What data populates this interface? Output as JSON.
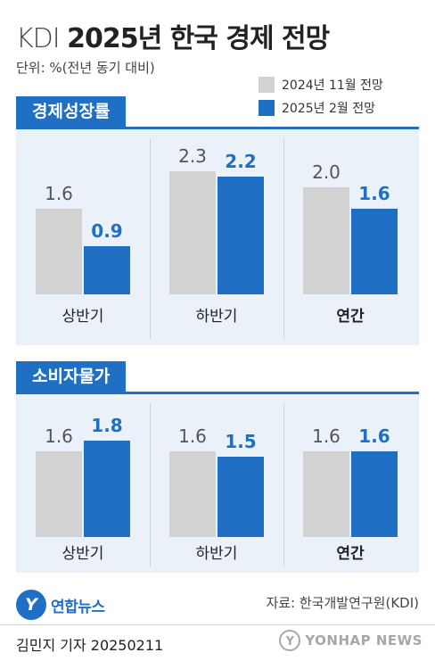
{
  "header": {
    "title_prefix": "KDI",
    "title_main": "2025년 한국 경제 전망",
    "unit": "단위: %(전년 동기 대비)"
  },
  "legend": {
    "items": [
      {
        "label": "2024년 11월 전망",
        "color": "#d2d2d2"
      },
      {
        "label": "2025년  2월 전망",
        "color": "#1f6fc4"
      }
    ]
  },
  "sections": [
    {
      "tag": "경제성장률"
    },
    {
      "tag": "소비자물가"
    }
  ],
  "chart_data": [
    {
      "type": "bar",
      "title": "경제성장률",
      "categories": [
        "상반기",
        "하반기",
        "연간"
      ],
      "series": [
        {
          "name": "2024년 11월 전망",
          "values": [
            1.6,
            2.3,
            2.0
          ],
          "color": "#d2d2d2"
        },
        {
          "name": "2025년  2월 전망",
          "values": [
            0.9,
            2.2,
            1.6
          ],
          "color": "#1f6fc4"
        }
      ],
      "value_labels": [
        [
          "1.6",
          "2.3",
          "2.0"
        ],
        [
          "0.9",
          "2.2",
          "1.6"
        ]
      ],
      "ylim": [
        0,
        2.6
      ]
    },
    {
      "type": "bar",
      "title": "소비자물가",
      "categories": [
        "상반기",
        "하반기",
        "연간"
      ],
      "series": [
        {
          "name": "2024년 11월 전망",
          "values": [
            1.6,
            1.6,
            1.6
          ],
          "color": "#d2d2d2"
        },
        {
          "name": "2025년  2월 전망",
          "values": [
            1.8,
            1.5,
            1.6
          ],
          "color": "#1f6fc4"
        }
      ],
      "value_labels": [
        [
          "1.6",
          "1.6",
          "1.6"
        ],
        [
          "1.8",
          "1.5",
          "1.6"
        ]
      ],
      "ylim": [
        0,
        2.6
      ]
    }
  ],
  "footer": {
    "logo_mark": "Y",
    "logo_text": "연합뉴스",
    "source": "자료: 한국개발연구원(KDI)",
    "byline": "김민지 기자  20250211",
    "watermark": "YONHAP NEWS"
  }
}
